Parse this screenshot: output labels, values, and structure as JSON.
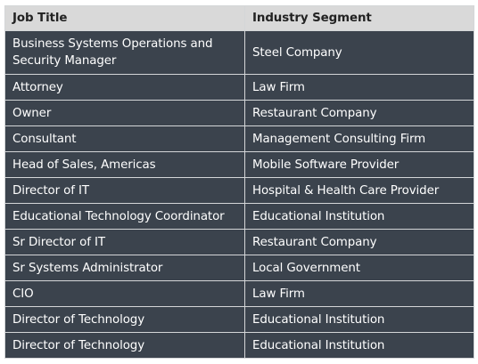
{
  "table": {
    "headers": [
      "Job Title",
      "Industry Segment"
    ],
    "rows": [
      [
        "Business Systems Operations and Security Manager",
        "Steel Company"
      ],
      [
        "Attorney",
        "Law Firm"
      ],
      [
        "Owner",
        "Restaurant Company"
      ],
      [
        "Consultant",
        "Management Consulting Firm"
      ],
      [
        "Head of Sales, Americas",
        "Mobile Software Provider"
      ],
      [
        "Director of IT",
        "Hospital & Health Care Provider"
      ],
      [
        "Educational Technology Coordinator",
        "Educational Institution"
      ],
      [
        "Sr Director of IT",
        "Restaurant Company"
      ],
      [
        "Sr Systems Administrator",
        "Local Government"
      ],
      [
        "CIO",
        "Law Firm"
      ],
      [
        "Director of Technology",
        "Educational Institution"
      ],
      [
        "Director of Technology",
        "Educational Institution"
      ]
    ]
  },
  "colors": {
    "header_bg": "#d9d9d9",
    "row_bg": "#3b434d",
    "row_text": "#ffffff",
    "border": "#d4d6d8"
  }
}
